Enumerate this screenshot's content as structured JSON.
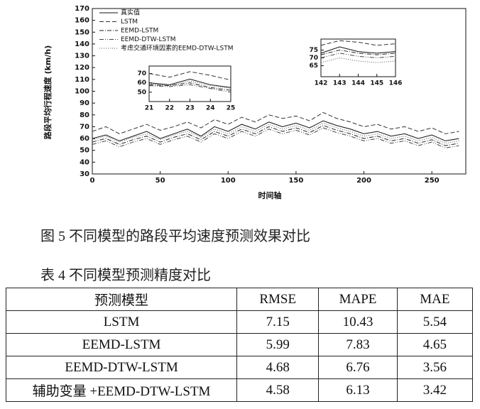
{
  "chart_data": [
    {
      "type": "line",
      "xlabel": "时间轴",
      "ylabel": "路段平均行程速度 (km/h)",
      "x": [
        0,
        10,
        20,
        30,
        40,
        50,
        60,
        70,
        80,
        90,
        100,
        110,
        120,
        130,
        140,
        150,
        160,
        170,
        180,
        190,
        200,
        210,
        220,
        230,
        240,
        250,
        260,
        270
      ],
      "xlim": [
        0,
        275
      ],
      "xticks": [
        0,
        50,
        100,
        150,
        200,
        250
      ],
      "ylim": [
        30,
        170
      ],
      "yticks": [
        30,
        40,
        50,
        60,
        70,
        80,
        90,
        100,
        110,
        120,
        130,
        140,
        150,
        160,
        170
      ],
      "legend": "upper left",
      "series": [
        {
          "name": "真实值",
          "color": "#111111",
          "dash": "solid",
          "values": [
            60,
            63,
            58,
            62,
            66,
            60,
            64,
            68,
            62,
            70,
            66,
            72,
            68,
            74,
            70,
            73,
            69,
            75,
            71,
            68,
            64,
            66,
            62,
            64,
            60,
            63,
            58,
            60
          ]
        },
        {
          "name": "LSTM",
          "color": "#333333",
          "dash": "dashed",
          "values": [
            66,
            70,
            64,
            68,
            72,
            67,
            70,
            74,
            69,
            76,
            72,
            78,
            74,
            80,
            77,
            79,
            75,
            82,
            77,
            74,
            70,
            72,
            68,
            70,
            66,
            69,
            64,
            66
          ]
        },
        {
          "name": "EEMD-LSTM",
          "color": "#222222",
          "dash": "dashdot",
          "values": [
            57,
            60,
            55,
            59,
            62,
            57,
            61,
            64,
            59,
            66,
            62,
            68,
            64,
            70,
            66,
            69,
            65,
            71,
            67,
            64,
            60,
            62,
            58,
            60,
            56,
            59,
            54,
            56
          ]
        },
        {
          "name": "EEMD-DTW-LSTM",
          "color": "#444444",
          "dash": "dashdotdot",
          "values": [
            55,
            58,
            53,
            57,
            60,
            55,
            59,
            62,
            57,
            64,
            60,
            66,
            62,
            68,
            64,
            67,
            63,
            69,
            65,
            62,
            58,
            60,
            56,
            58,
            54,
            57,
            52,
            54
          ]
        },
        {
          "name": "考虑交通环境因素的EEMD-DTW-LSTM",
          "color": "#555555",
          "dash": "dotted",
          "values": [
            59,
            62,
            57,
            61,
            64,
            59,
            63,
            66,
            61,
            68,
            64,
            70,
            66,
            72,
            68,
            71,
            67,
            73,
            69,
            66,
            62,
            64,
            60,
            62,
            58,
            61,
            56,
            58
          ]
        }
      ]
    },
    {
      "type": "line",
      "x": [
        21,
        22,
        23,
        24,
        25
      ],
      "xlim": [
        21,
        25
      ],
      "xticks": [
        21,
        22,
        23,
        24,
        25
      ],
      "ylim": [
        40,
        78
      ],
      "yticks": [
        50,
        60,
        70
      ],
      "series": [
        {
          "color": "#111111",
          "dash": "solid",
          "values": [
            60,
            58,
            64,
            58,
            55
          ]
        },
        {
          "color": "#333333",
          "dash": "dashed",
          "values": [
            70,
            66,
            72,
            68,
            63
          ]
        },
        {
          "color": "#222222",
          "dash": "dashdot",
          "values": [
            58,
            57,
            60,
            55,
            52
          ]
        },
        {
          "color": "#444444",
          "dash": "dashdotdot",
          "values": [
            57,
            56,
            58,
            54,
            50
          ]
        },
        {
          "color": "#555555",
          "dash": "dotted",
          "values": [
            59,
            57,
            62,
            57,
            54
          ]
        }
      ]
    },
    {
      "type": "line",
      "x": [
        142,
        143,
        144,
        145,
        146
      ],
      "xlim": [
        142,
        146
      ],
      "xticks": [
        142,
        143,
        144,
        145,
        146
      ],
      "ylim": [
        58,
        82
      ],
      "yticks": [
        65,
        70,
        75
      ],
      "series": [
        {
          "color": "#111111",
          "dash": "solid",
          "values": [
            73,
            77,
            74,
            73,
            74
          ]
        },
        {
          "color": "#333333",
          "dash": "dashed",
          "values": [
            78,
            81,
            80,
            78,
            79
          ]
        },
        {
          "color": "#222222",
          "dash": "dashdot",
          "values": [
            72,
            75,
            73,
            72,
            73
          ]
        },
        {
          "color": "#444444",
          "dash": "dashdotdot",
          "values": [
            70,
            73,
            71,
            70,
            71
          ]
        },
        {
          "color": "#555555",
          "dash": "dotted",
          "values": [
            67,
            70,
            68,
            67,
            68
          ]
        }
      ]
    }
  ],
  "caption": "图 5 不同模型的路段平均速度预测效果对比",
  "table": {
    "title": "表 4 不同模型预测精度对比",
    "header": [
      "预测模型",
      "RMSE",
      "MAPE",
      "MAE"
    ],
    "rows": [
      [
        "LSTM",
        "7.15",
        "10.43",
        "5.54"
      ],
      [
        "EEMD-LSTM",
        "5.99",
        "7.83",
        "4.65"
      ],
      [
        "EEMD-DTW-LSTM",
        "4.68",
        "6.76",
        "3.56"
      ],
      [
        "辅助变量 +EEMD-DTW-LSTM",
        "4.58",
        "6.13",
        "3.42"
      ]
    ]
  }
}
